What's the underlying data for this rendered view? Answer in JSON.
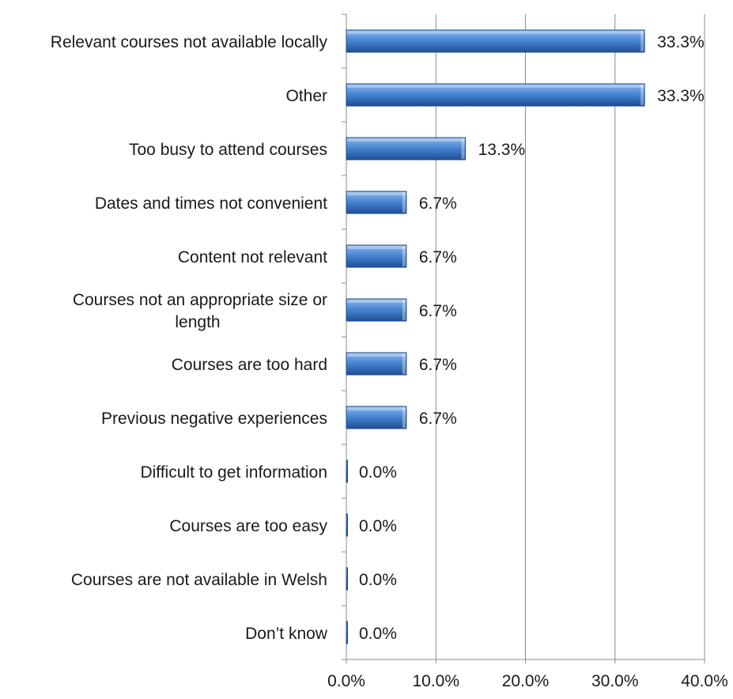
{
  "chart_data": {
    "type": "bar",
    "orientation": "horizontal",
    "title": "",
    "xlabel": "",
    "ylabel": "",
    "categories": [
      [
        "Relevant courses not available locally"
      ],
      [
        "Other"
      ],
      [
        "Too busy to attend courses"
      ],
      [
        "Dates and times not convenient"
      ],
      [
        "Content not relevant"
      ],
      [
        "Courses not an appropriate size or",
        "length"
      ],
      [
        "Courses are too hard"
      ],
      [
        "Previous negative experiences"
      ],
      [
        "Difficult to get information"
      ],
      [
        "Courses are too easy"
      ],
      [
        "Courses are not available in Welsh"
      ],
      [
        "Don’t know"
      ]
    ],
    "values": [
      33.3,
      33.3,
      13.3,
      6.7,
      6.7,
      6.7,
      6.7,
      6.7,
      0.0,
      0.0,
      0.0,
      0.0
    ],
    "data_labels": [
      "33.3%",
      "33.3%",
      "13.3%",
      "6.7%",
      "6.7%",
      "6.7%",
      "6.7%",
      "6.7%",
      "0.0%",
      "0.0%",
      "0.0%",
      "0.0%"
    ],
    "xlim": [
      0,
      40
    ],
    "x_ticks": [
      0,
      10,
      20,
      30,
      40
    ],
    "x_tick_labels": [
      "0.0%",
      "10.0%",
      "20.0%",
      "30.0%",
      "40.0%"
    ],
    "grid": "vertical",
    "legend": "none",
    "colors": {
      "bar_top": "#8fb8ea",
      "bar_mid": "#4a86d4",
      "bar_bottom": "#1f4f96",
      "bar_stroke": "#1c4a8a",
      "grid": "#8c8c8c",
      "axis": "#8c8c8c",
      "text": "#1a1a1a"
    }
  }
}
